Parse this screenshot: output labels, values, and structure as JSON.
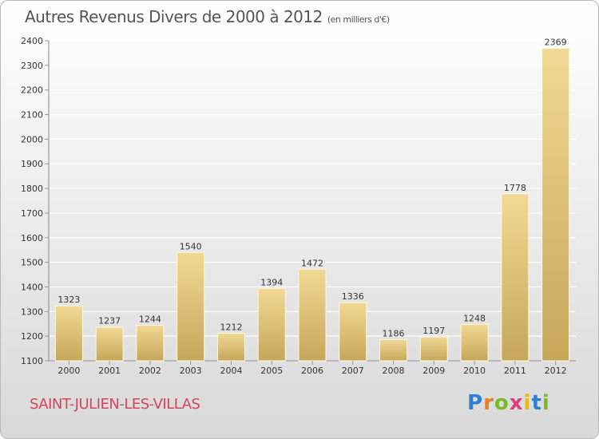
{
  "header": {
    "title": "Autres Revenus Divers de 2000 à 2012",
    "subtitle": "(en milliers d'€)"
  },
  "footer": {
    "town": "SAINT-JULIEN-LES-VILLAS",
    "logo": {
      "letters": [
        "P",
        "r",
        "o",
        "x",
        "i",
        "t",
        "i"
      ],
      "colors": [
        "#2e7fd0",
        "#ef7d1a",
        "#7ab929",
        "#e23b7a",
        "#f2b705",
        "#2e7fd0",
        "#7ab929"
      ]
    }
  },
  "chart_data": {
    "type": "bar",
    "categories": [
      "2000",
      "2001",
      "2002",
      "2003",
      "2004",
      "2005",
      "2006",
      "2007",
      "2008",
      "2009",
      "2010",
      "2011",
      "2012"
    ],
    "values": [
      1323,
      1237,
      1244,
      1540,
      1212,
      1394,
      1472,
      1336,
      1186,
      1197,
      1248,
      1778,
      2369
    ],
    "ylim": [
      1100,
      2400
    ],
    "yticks": [
      1100,
      1200,
      1300,
      1400,
      1500,
      1600,
      1700,
      1800,
      1900,
      2000,
      2100,
      2200,
      2300,
      2400
    ],
    "grid": true,
    "bar_color": "#e3c57a"
  }
}
